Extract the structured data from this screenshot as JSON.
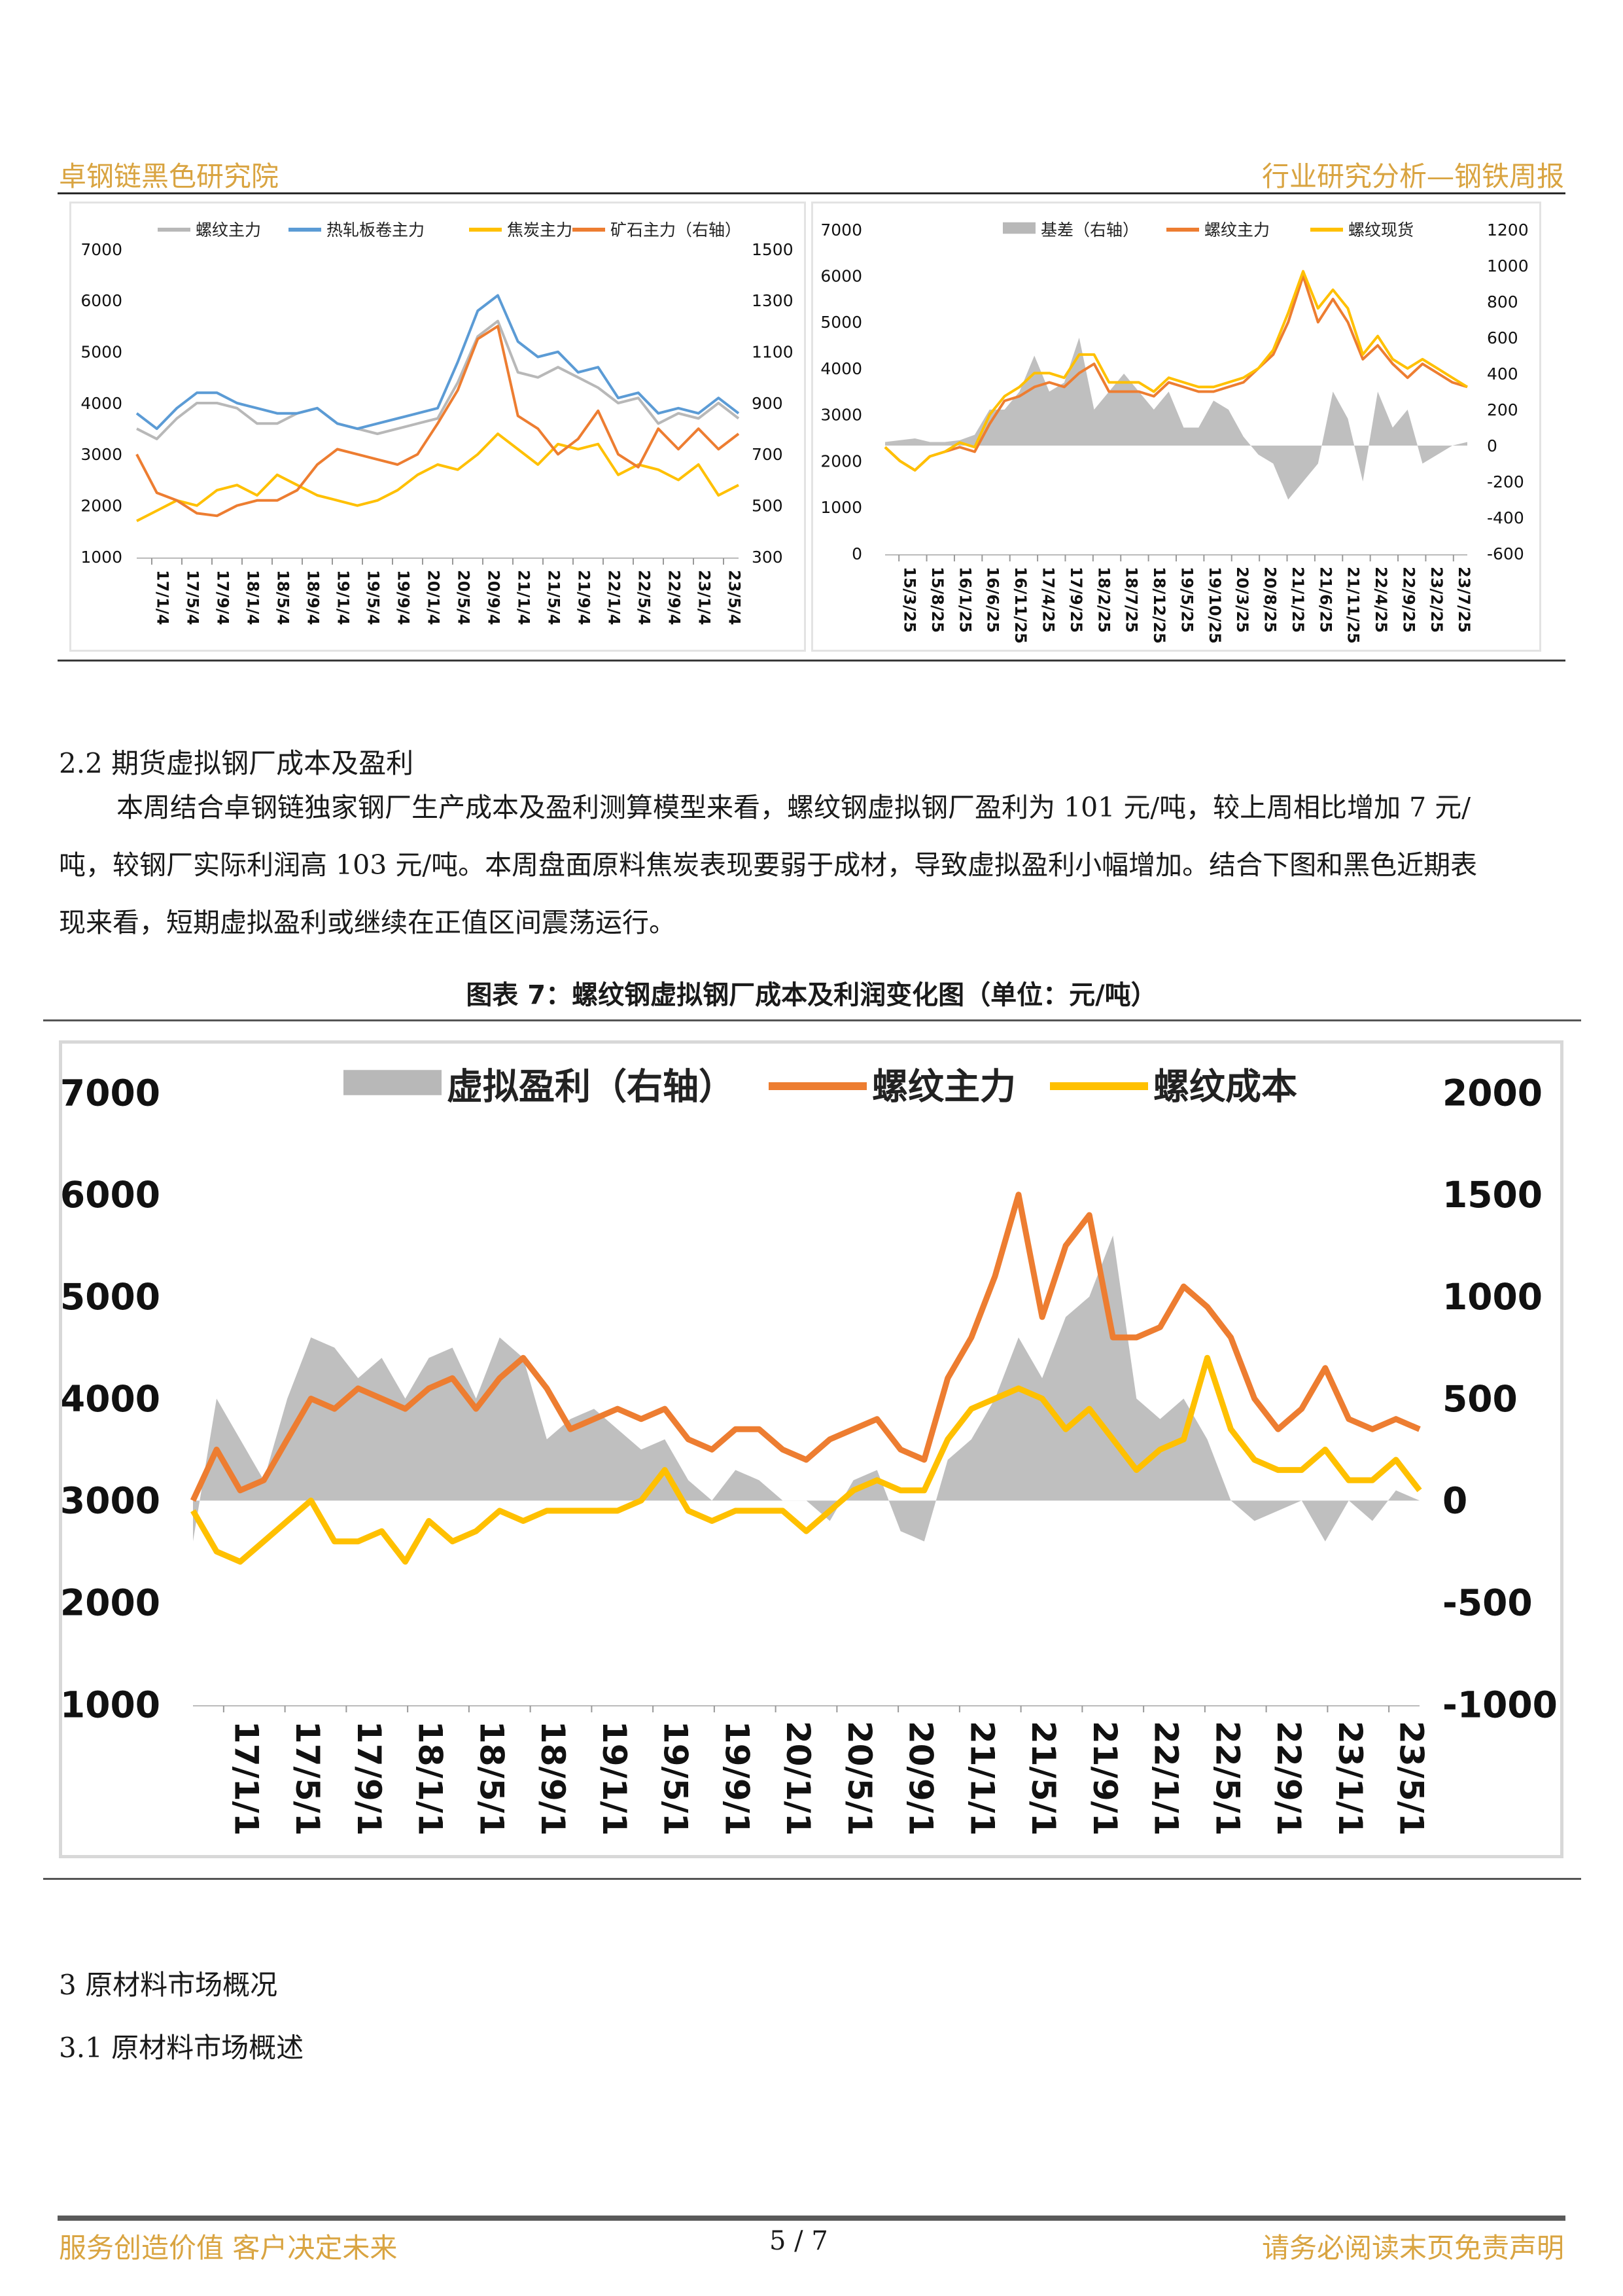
{
  "header": {
    "left": "卓钢链黑色研究院",
    "right": "行业研究分析—钢铁周报"
  },
  "section_2_2": {
    "title": "2.2 期货虚拟钢厂成本及盈利",
    "paragraph_lines": [
      "本周结合卓钢链独家钢厂生产成本及盈利测算模型来看，螺纹钢虚拟钢厂盈利为 101 元/吨，较上周相比增加 7 元/",
      "吨，较钢厂实际利润高 103 元/吨。本周盘面原料焦炭表现要弱于成材，导致虚拟盈利小幅增加。结合下图和黑色近期表",
      "现来看，短期虚拟盈利或继续在正值区间震荡运行。"
    ]
  },
  "figure7_caption": "图表 7：螺纹钢虚拟钢厂成本及利润变化图（单位：元/吨）",
  "section_3": {
    "title": "3 原材料市场概况",
    "sub": "3.1 原材料市场概述"
  },
  "footer": {
    "left": "服务创造价值 客户决定未来",
    "page": "5 / 7",
    "right": "请务必阅读末页免责声明"
  },
  "colors": {
    "gray": "#b8b8b8",
    "blue": "#5b9bd5",
    "yellow": "#ffc000",
    "orange": "#ed7d31",
    "accent": "#d9a441"
  },
  "chart_data": [
    {
      "id": "chart-left",
      "type": "line",
      "legend": [
        "螺纹主力",
        "热轧板卷主力",
        "焦炭主力",
        "矿石主力（右轴）"
      ],
      "y_left": {
        "ticks": [
          "7000",
          "6000",
          "5000",
          "4000",
          "3000",
          "2000",
          "1000"
        ],
        "range": [
          1000,
          7000
        ]
      },
      "y_right": {
        "ticks": [
          "1500",
          "1300",
          "1100",
          "900",
          "700",
          "500",
          "300"
        ],
        "range": [
          300,
          1500
        ]
      },
      "x_ticks": [
        "17/1/4",
        "17/5/4",
        "17/9/4",
        "18/1/4",
        "18/5/4",
        "18/9/4",
        "19/1/4",
        "19/5/4",
        "19/9/4",
        "20/1/4",
        "20/5/4",
        "20/9/4",
        "21/1/4",
        "21/5/4",
        "21/9/4",
        "22/1/4",
        "22/5/4",
        "22/9/4",
        "23/1/4",
        "23/5/4"
      ],
      "series": [
        {
          "name": "螺纹主力",
          "color": "gray",
          "axis": "left",
          "values": [
            3500,
            3300,
            3700,
            4000,
            4000,
            3900,
            3600,
            3600,
            3800,
            3900,
            3600,
            3500,
            3400,
            3500,
            3600,
            3700,
            4400,
            5300,
            5600,
            4600,
            4500,
            4700,
            4500,
            4300,
            4000,
            4100,
            3600,
            3800,
            3700,
            4000,
            3700
          ]
        },
        {
          "name": "热轧板卷主力",
          "color": "blue",
          "axis": "left",
          "values": [
            3800,
            3500,
            3900,
            4200,
            4200,
            4000,
            3900,
            3800,
            3800,
            3900,
            3600,
            3500,
            3600,
            3700,
            3800,
            3900,
            4800,
            5800,
            6100,
            5200,
            4900,
            5000,
            4600,
            4700,
            4100,
            4200,
            3800,
            3900,
            3800,
            4100,
            3800
          ]
        },
        {
          "name": "焦炭主力",
          "color": "yellow",
          "axis": "left",
          "values": [
            1700,
            1900,
            2100,
            2000,
            2300,
            2400,
            2200,
            2600,
            2400,
            2200,
            2100,
            2000,
            2100,
            2300,
            2600,
            2800,
            2700,
            3000,
            3400,
            3100,
            2800,
            3200,
            3100,
            3200,
            2600,
            2800,
            2700,
            2500,
            2800,
            2200,
            2400
          ]
        },
        {
          "name": "矿石主力（右轴）",
          "color": "orange",
          "axis": "right",
          "values": [
            700,
            550,
            520,
            470,
            460,
            500,
            520,
            520,
            560,
            660,
            720,
            700,
            680,
            660,
            700,
            820,
            950,
            1150,
            1200,
            850,
            800,
            700,
            760,
            870,
            700,
            650,
            800,
            720,
            800,
            720,
            780
          ]
        }
      ]
    },
    {
      "id": "chart-right",
      "type": "line",
      "legend": [
        "基差（右轴）",
        "螺纹主力",
        "螺纹现货"
      ],
      "y_left": {
        "ticks": [
          "7000",
          "6000",
          "5000",
          "4000",
          "3000",
          "2000",
          "1000",
          "0"
        ],
        "range": [
          0,
          7000
        ]
      },
      "y_right": {
        "ticks": [
          "1200",
          "1000",
          "800",
          "600",
          "400",
          "200",
          "0",
          "-200",
          "-400",
          "-600"
        ],
        "range": [
          -600,
          1200
        ]
      },
      "x_ticks": [
        "15/3/25",
        "15/8/25",
        "16/1/25",
        "16/6/25",
        "16/11/25",
        "17/4/25",
        "17/9/25",
        "18/2/25",
        "18/7/25",
        "18/12/25",
        "19/5/25",
        "19/10/25",
        "20/3/25",
        "20/8/25",
        "21/1/25",
        "21/6/25",
        "21/11/25",
        "22/4/25",
        "22/9/25",
        "23/2/25",
        "23/7/25"
      ],
      "series": [
        {
          "name": "基差（右轴）",
          "color": "gray",
          "axis": "right",
          "kind": "area",
          "values": [
            20,
            30,
            40,
            20,
            20,
            30,
            60,
            200,
            200,
            300,
            500,
            300,
            350,
            600,
            200,
            300,
            400,
            300,
            200,
            300,
            100,
            100,
            250,
            200,
            50,
            -50,
            -100,
            -300,
            -200,
            -100,
            300,
            150,
            -200,
            300,
            100,
            200,
            -100,
            -50,
            0,
            20
          ]
        },
        {
          "name": "螺纹主力",
          "color": "orange",
          "axis": "left",
          "values": [
            2300,
            2000,
            1800,
            2100,
            2200,
            2300,
            2200,
            2800,
            3300,
            3400,
            3600,
            3700,
            3600,
            3900,
            4100,
            3500,
            3500,
            3500,
            3400,
            3700,
            3600,
            3500,
            3500,
            3600,
            3700,
            4000,
            4300,
            5000,
            6000,
            5000,
            5500,
            5000,
            4200,
            4500,
            4100,
            3800,
            4100,
            3900,
            3700,
            3600
          ]
        },
        {
          "name": "螺纹现货",
          "color": "yellow",
          "axis": "left",
          "values": [
            2300,
            2000,
            1800,
            2100,
            2200,
            2400,
            2300,
            3000,
            3400,
            3600,
            3900,
            3900,
            3800,
            4300,
            4300,
            3700,
            3700,
            3700,
            3500,
            3800,
            3700,
            3600,
            3600,
            3700,
            3800,
            4000,
            4400,
            5200,
            6100,
            5300,
            5700,
            5300,
            4300,
            4700,
            4200,
            4000,
            4200,
            4000,
            3800,
            3600
          ]
        }
      ]
    },
    {
      "id": "chart-figure7",
      "type": "line",
      "legend": [
        "虚拟盈利（右轴）",
        "螺纹主力",
        "螺纹成本"
      ],
      "y_left": {
        "ticks": [
          "7000",
          "6000",
          "5000",
          "4000",
          "3000",
          "2000",
          "1000"
        ],
        "range": [
          1000,
          7000
        ]
      },
      "y_right": {
        "ticks": [
          "2000",
          "1500",
          "1000",
          "500",
          "0",
          "-500",
          "-1000"
        ],
        "range": [
          -1000,
          2000
        ]
      },
      "x_ticks": [
        "17/1/1",
        "17/5/1",
        "17/9/1",
        "18/1/1",
        "18/5/1",
        "18/9/1",
        "19/1/1",
        "19/5/1",
        "19/9/1",
        "20/1/1",
        "20/5/1",
        "20/9/1",
        "21/1/1",
        "21/5/1",
        "21/9/1",
        "22/1/1",
        "22/5/1",
        "22/9/1",
        "23/1/1",
        "23/5/1"
      ],
      "series": [
        {
          "name": "虚拟盈利（右轴）",
          "color": "gray",
          "axis": "right",
          "kind": "area",
          "values": [
            -200,
            500,
            300,
            100,
            500,
            800,
            750,
            600,
            700,
            500,
            700,
            750,
            500,
            800,
            700,
            300,
            400,
            450,
            350,
            250,
            300,
            100,
            0,
            150,
            100,
            0,
            0,
            -100,
            100,
            150,
            -150,
            -200,
            200,
            300,
            500,
            800,
            600,
            900,
            1000,
            1300,
            500,
            400,
            500,
            300,
            0,
            -100,
            -50,
            0,
            -200,
            0,
            -100,
            50,
            0
          ]
        },
        {
          "name": "螺纹主力",
          "color": "orange",
          "axis": "left",
          "values": [
            3000,
            3500,
            3100,
            3200,
            3600,
            4000,
            3900,
            4100,
            4000,
            3900,
            4100,
            4200,
            3900,
            4200,
            4400,
            4100,
            3700,
            3800,
            3900,
            3800,
            3900,
            3600,
            3500,
            3700,
            3700,
            3500,
            3400,
            3600,
            3700,
            3800,
            3500,
            3400,
            4200,
            4600,
            5200,
            6000,
            4800,
            5500,
            5800,
            4600,
            4600,
            4700,
            5100,
            4900,
            4600,
            4000,
            3700,
            3900,
            4300,
            3800,
            3700,
            3800,
            3700
          ]
        },
        {
          "name": "螺纹成本",
          "color": "yellow",
          "axis": "left",
          "values": [
            2900,
            2500,
            2400,
            2600,
            2800,
            3000,
            2600,
            2600,
            2700,
            2400,
            2800,
            2600,
            2700,
            2900,
            2800,
            2900,
            2900,
            2900,
            2900,
            3000,
            3300,
            2900,
            2800,
            2900,
            2900,
            2900,
            2700,
            2900,
            3100,
            3200,
            3100,
            3100,
            3600,
            3900,
            4000,
            4100,
            4000,
            3700,
            3900,
            3600,
            3300,
            3500,
            3600,
            4400,
            3700,
            3400,
            3300,
            3300,
            3500,
            3200,
            3200,
            3400,
            3100
          ]
        }
      ]
    }
  ]
}
